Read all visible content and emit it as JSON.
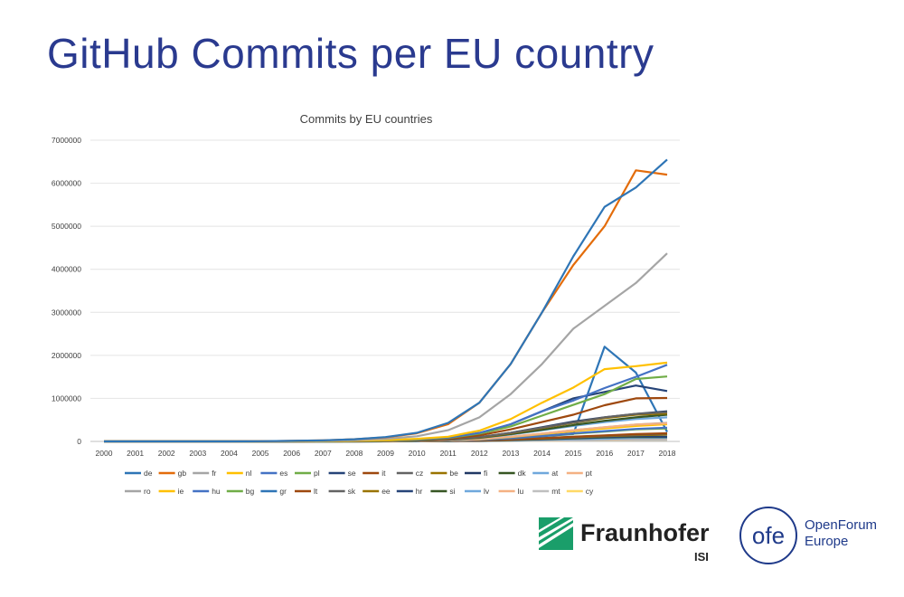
{
  "slide": {
    "title": "GitHub Commits per EU country"
  },
  "logos": {
    "fraunhofer_name": "Fraunhofer",
    "fraunhofer_sub": "ISI",
    "fraunhofer_color": "#1a9e6a",
    "ofe_mark": "ofe",
    "ofe_line1": "OpenForum",
    "ofe_line2": "Europe",
    "ofe_color": "#1f3a8a"
  },
  "chart_data": {
    "type": "line",
    "title": "Commits by EU countries",
    "xlabel": "",
    "ylabel": "",
    "ylim": [
      0,
      7000000
    ],
    "yticks": [
      "0",
      "1000000",
      "2000000",
      "3000000",
      "4000000",
      "5000000",
      "6000000",
      "7000000"
    ],
    "categories": [
      "2000",
      "2001",
      "2002",
      "2003",
      "2004",
      "2005",
      "2006",
      "2007",
      "2008",
      "2009",
      "2010",
      "2011",
      "2012",
      "2013",
      "2014",
      "2015",
      "2016",
      "2017",
      "2018"
    ],
    "grid": true,
    "legend_position": "bottom",
    "series": [
      {
        "name": "de",
        "color": "#2e75b6",
        "values": [
          0,
          0,
          0,
          0,
          0,
          5000,
          12000,
          25000,
          50000,
          100000,
          200000,
          430000,
          900000,
          1800000,
          3000000,
          4300000,
          5450000,
          5900000,
          6550000
        ]
      },
      {
        "name": "gb",
        "color": "#e36c0a",
        "values": [
          0,
          0,
          0,
          0,
          0,
          5000,
          12000,
          25000,
          50000,
          95000,
          190000,
          400000,
          900000,
          1800000,
          3000000,
          4100000,
          5000000,
          6300000,
          6200000
        ]
      },
      {
        "name": "fr",
        "color": "#a5a5a5",
        "values": [
          0,
          0,
          0,
          0,
          0,
          3000,
          8000,
          15000,
          30000,
          60000,
          120000,
          260000,
          560000,
          1100000,
          1800000,
          2620000,
          3150000,
          3680000,
          4370000
        ]
      },
      {
        "name": "nl",
        "color": "#ffc000",
        "values": [
          0,
          0,
          0,
          0,
          0,
          1000,
          3000,
          8000,
          15000,
          30000,
          60000,
          110000,
          250000,
          520000,
          900000,
          1250000,
          1680000,
          1750000,
          1830000
        ]
      },
      {
        "name": "es",
        "color": "#4472c4",
        "values": [
          0,
          0,
          0,
          0,
          0,
          1000,
          3000,
          6000,
          12000,
          25000,
          50000,
          90000,
          200000,
          400000,
          700000,
          950000,
          1240000,
          1500000,
          1780000
        ]
      },
      {
        "name": "pl",
        "color": "#70ad47",
        "values": [
          0,
          0,
          0,
          0,
          0,
          1000,
          2000,
          5000,
          10000,
          20000,
          40000,
          80000,
          180000,
          350000,
          600000,
          850000,
          1100000,
          1450000,
          1510000
        ]
      },
      {
        "name": "se",
        "color": "#264478",
        "values": [
          0,
          0,
          0,
          0,
          0,
          1000,
          2000,
          5000,
          10000,
          20000,
          40000,
          80000,
          190000,
          400000,
          700000,
          1000000,
          1150000,
          1300000,
          1170000
        ]
      },
      {
        "name": "it",
        "color": "#9e480e",
        "values": [
          0,
          0,
          0,
          0,
          0,
          1000,
          2000,
          4000,
          8000,
          15000,
          30000,
          60000,
          140000,
          280000,
          450000,
          620000,
          840000,
          1000000,
          1010000
        ]
      },
      {
        "name": "cz",
        "color": "#636363",
        "values": [
          0,
          0,
          0,
          0,
          0,
          500,
          1000,
          3000,
          6000,
          12000,
          25000,
          45000,
          100000,
          200000,
          320000,
          440000,
          560000,
          640000,
          680000
        ]
      },
      {
        "name": "be",
        "color": "#997300",
        "values": [
          0,
          0,
          0,
          0,
          0,
          500,
          1000,
          3000,
          6000,
          12000,
          24000,
          45000,
          95000,
          190000,
          310000,
          430000,
          540000,
          620000,
          650000
        ]
      },
      {
        "name": "fi",
        "color": "#203864",
        "values": [
          0,
          0,
          0,
          0,
          0,
          500,
          1000,
          2000,
          5000,
          10000,
          20000,
          40000,
          95000,
          200000,
          330000,
          460000,
          560000,
          640000,
          700000
        ]
      },
      {
        "name": "dk",
        "color": "#375623",
        "values": [
          0,
          0,
          0,
          0,
          0,
          500,
          1000,
          2000,
          5000,
          10000,
          20000,
          38000,
          85000,
          170000,
          270000,
          380000,
          480000,
          560000,
          620000
        ]
      },
      {
        "name": "at",
        "color": "#6fa8dc",
        "values": [
          0,
          0,
          0,
          0,
          0,
          500,
          1000,
          2000,
          5000,
          10000,
          18000,
          35000,
          80000,
          160000,
          260000,
          360000,
          450000,
          520000,
          560000
        ]
      },
      {
        "name": "pt",
        "color": "#f4b183",
        "values": [
          0,
          0,
          0,
          0,
          0,
          300,
          800,
          1500,
          3000,
          6000,
          12000,
          25000,
          55000,
          110000,
          180000,
          260000,
          330000,
          390000,
          420000
        ]
      },
      {
        "name": "ro",
        "color": "#a5a5a5",
        "values": [
          0,
          0,
          0,
          0,
          0,
          300,
          800,
          1500,
          3000,
          6000,
          12000,
          25000,
          55000,
          110000,
          180000,
          260000,
          330000,
          390000,
          430000
        ]
      },
      {
        "name": "ie",
        "color": "#ffc000",
        "values": [
          0,
          0,
          0,
          0,
          0,
          300,
          800,
          1500,
          3000,
          6000,
          12000,
          24000,
          50000,
          100000,
          170000,
          240000,
          300000,
          360000,
          400000
        ]
      },
      {
        "name": "hu",
        "color": "#4472c4",
        "values": [
          0,
          0,
          0,
          0,
          0,
          200,
          500,
          1000,
          2000,
          4000,
          9000,
          18000,
          40000,
          80000,
          130000,
          190000,
          240000,
          290000,
          320000
        ]
      },
      {
        "name": "bg",
        "color": "#70ad47",
        "values": [
          0,
          0,
          0,
          0,
          0,
          200,
          500,
          1000,
          2000,
          4000,
          9000,
          18000,
          40000,
          80000,
          130000,
          180000,
          230000,
          280000,
          300000
        ]
      },
      {
        "name": "gr",
        "color": "#2e75b6",
        "values": [
          0,
          0,
          0,
          0,
          0,
          200,
          500,
          1000,
          2000,
          4000,
          8000,
          16000,
          35000,
          70000,
          120000,
          170000,
          2200000,
          1600000,
          220000
        ]
      },
      {
        "name": "lt",
        "color": "#9e480e",
        "values": [
          0,
          0,
          0,
          0,
          0,
          100,
          300,
          600,
          1200,
          2500,
          5000,
          10000,
          22000,
          45000,
          75000,
          110000,
          140000,
          170000,
          190000
        ]
      },
      {
        "name": "sk",
        "color": "#636363",
        "values": [
          0,
          0,
          0,
          0,
          0,
          100,
          300,
          600,
          1200,
          2500,
          5000,
          10000,
          22000,
          45000,
          75000,
          105000,
          135000,
          160000,
          180000
        ]
      },
      {
        "name": "ee",
        "color": "#997300",
        "values": [
          0,
          0,
          0,
          0,
          0,
          100,
          300,
          600,
          1200,
          2500,
          5000,
          10000,
          20000,
          40000,
          65000,
          95000,
          120000,
          145000,
          160000
        ]
      },
      {
        "name": "hr",
        "color": "#264478",
        "values": [
          0,
          0,
          0,
          0,
          0,
          100,
          200,
          500,
          1000,
          2000,
          4000,
          8000,
          18000,
          35000,
          55000,
          80000,
          100000,
          120000,
          110000
        ]
      },
      {
        "name": "si",
        "color": "#375623",
        "values": [
          0,
          0,
          0,
          0,
          0,
          100,
          200,
          500,
          1000,
          2000,
          4000,
          8000,
          16000,
          32000,
          50000,
          70000,
          90000,
          105000,
          100000
        ]
      },
      {
        "name": "lv",
        "color": "#6fa8dc",
        "values": [
          0,
          0,
          0,
          0,
          0,
          50,
          150,
          300,
          600,
          1200,
          2500,
          5000,
          11000,
          22000,
          36000,
          50000,
          62000,
          75000,
          80000
        ]
      },
      {
        "name": "lu",
        "color": "#f4b183",
        "values": [
          0,
          0,
          0,
          0,
          0,
          50,
          150,
          300,
          600,
          1200,
          2500,
          5000,
          10000,
          20000,
          32000,
          45000,
          55000,
          65000,
          70000
        ]
      },
      {
        "name": "mt",
        "color": "#bfbfbf",
        "values": [
          0,
          0,
          0,
          0,
          0,
          30,
          80,
          150,
          300,
          600,
          1200,
          2500,
          5000,
          10000,
          16000,
          22000,
          28000,
          33000,
          36000
        ]
      },
      {
        "name": "cy",
        "color": "#ffd966",
        "values": [
          0,
          0,
          0,
          0,
          0,
          30,
          80,
          150,
          300,
          600,
          1200,
          2500,
          5000,
          10000,
          15000,
          21000,
          26000,
          31000,
          34000
        ]
      }
    ]
  }
}
